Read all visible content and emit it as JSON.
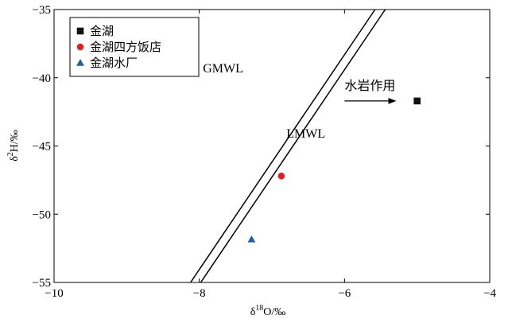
{
  "chart_data": {
    "type": "scatter",
    "xlabel": "δ18O/‰",
    "ylabel": "δ2H/‰",
    "xlim": [
      -10,
      -4
    ],
    "ylim": [
      -55,
      -35
    ],
    "xticks": [
      -10,
      -8,
      -6,
      -4
    ],
    "xtick_labels": [
      "−10",
      "−8",
      "−6",
      "−4"
    ],
    "yticks": [
      -55,
      -50,
      -45,
      -40,
      -35
    ],
    "ytick_labels": [
      "−55",
      "−50",
      "−45",
      "−40",
      "−35"
    ],
    "grid": false,
    "legend_position": "top-left",
    "series": [
      {
        "name": "金湖",
        "marker": "square",
        "color": "#111111",
        "x": [
          -5.0
        ],
        "y": [
          -41.7
        ]
      },
      {
        "name": "金湖四方饭店",
        "marker": "circle",
        "color": "#e02020",
        "x": [
          -6.87
        ],
        "y": [
          -47.2
        ]
      },
      {
        "name": "金湖水厂",
        "marker": "triangle",
        "color": "#1f5fa8",
        "x": [
          -7.28
        ],
        "y": [
          -51.85
        ]
      }
    ],
    "lines": [
      {
        "name": "GMWL",
        "points": [
          [
            -8.12,
            -55
          ],
          [
            -5.58,
            -35
          ]
        ]
      },
      {
        "name": "LMWL",
        "points": [
          [
            -7.98,
            -55
          ],
          [
            -5.44,
            -35
          ]
        ]
      }
    ],
    "annotations": [
      {
        "id": "gmwl-label",
        "text": "GMWL",
        "x": -7.95,
        "y": -39.6
      },
      {
        "id": "lmwl-label",
        "text": "LMWL",
        "x": -6.8,
        "y": -44.4
      },
      {
        "id": "water-rock-label",
        "text": "水岩作用",
        "x": -6.0,
        "y": -40.9
      }
    ],
    "arrow": {
      "from": [
        -6.0,
        -41.7
      ],
      "to": [
        -5.3,
        -41.7
      ]
    }
  }
}
